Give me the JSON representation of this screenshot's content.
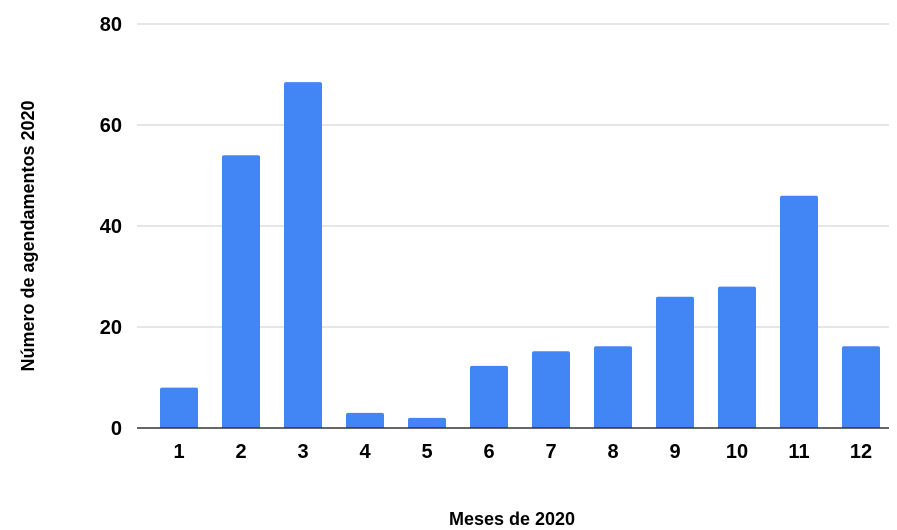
{
  "chart_data": {
    "type": "bar",
    "title": "",
    "xlabel": "Meses de 2020",
    "ylabel": "Número de agendamentos 2020",
    "categories": [
      "1",
      "2",
      "3",
      "4",
      "5",
      "6",
      "7",
      "8",
      "9",
      "10",
      "11",
      "12"
    ],
    "values": [
      8,
      54,
      68.5,
      3,
      2,
      12.3,
      15.2,
      16.2,
      26,
      28,
      46,
      16.2
    ],
    "ylim": [
      0,
      80
    ],
    "yticks": [
      "0",
      "20",
      "40",
      "60",
      "80"
    ],
    "bar_color": "#4285f4",
    "grid": true,
    "legend": "none"
  }
}
